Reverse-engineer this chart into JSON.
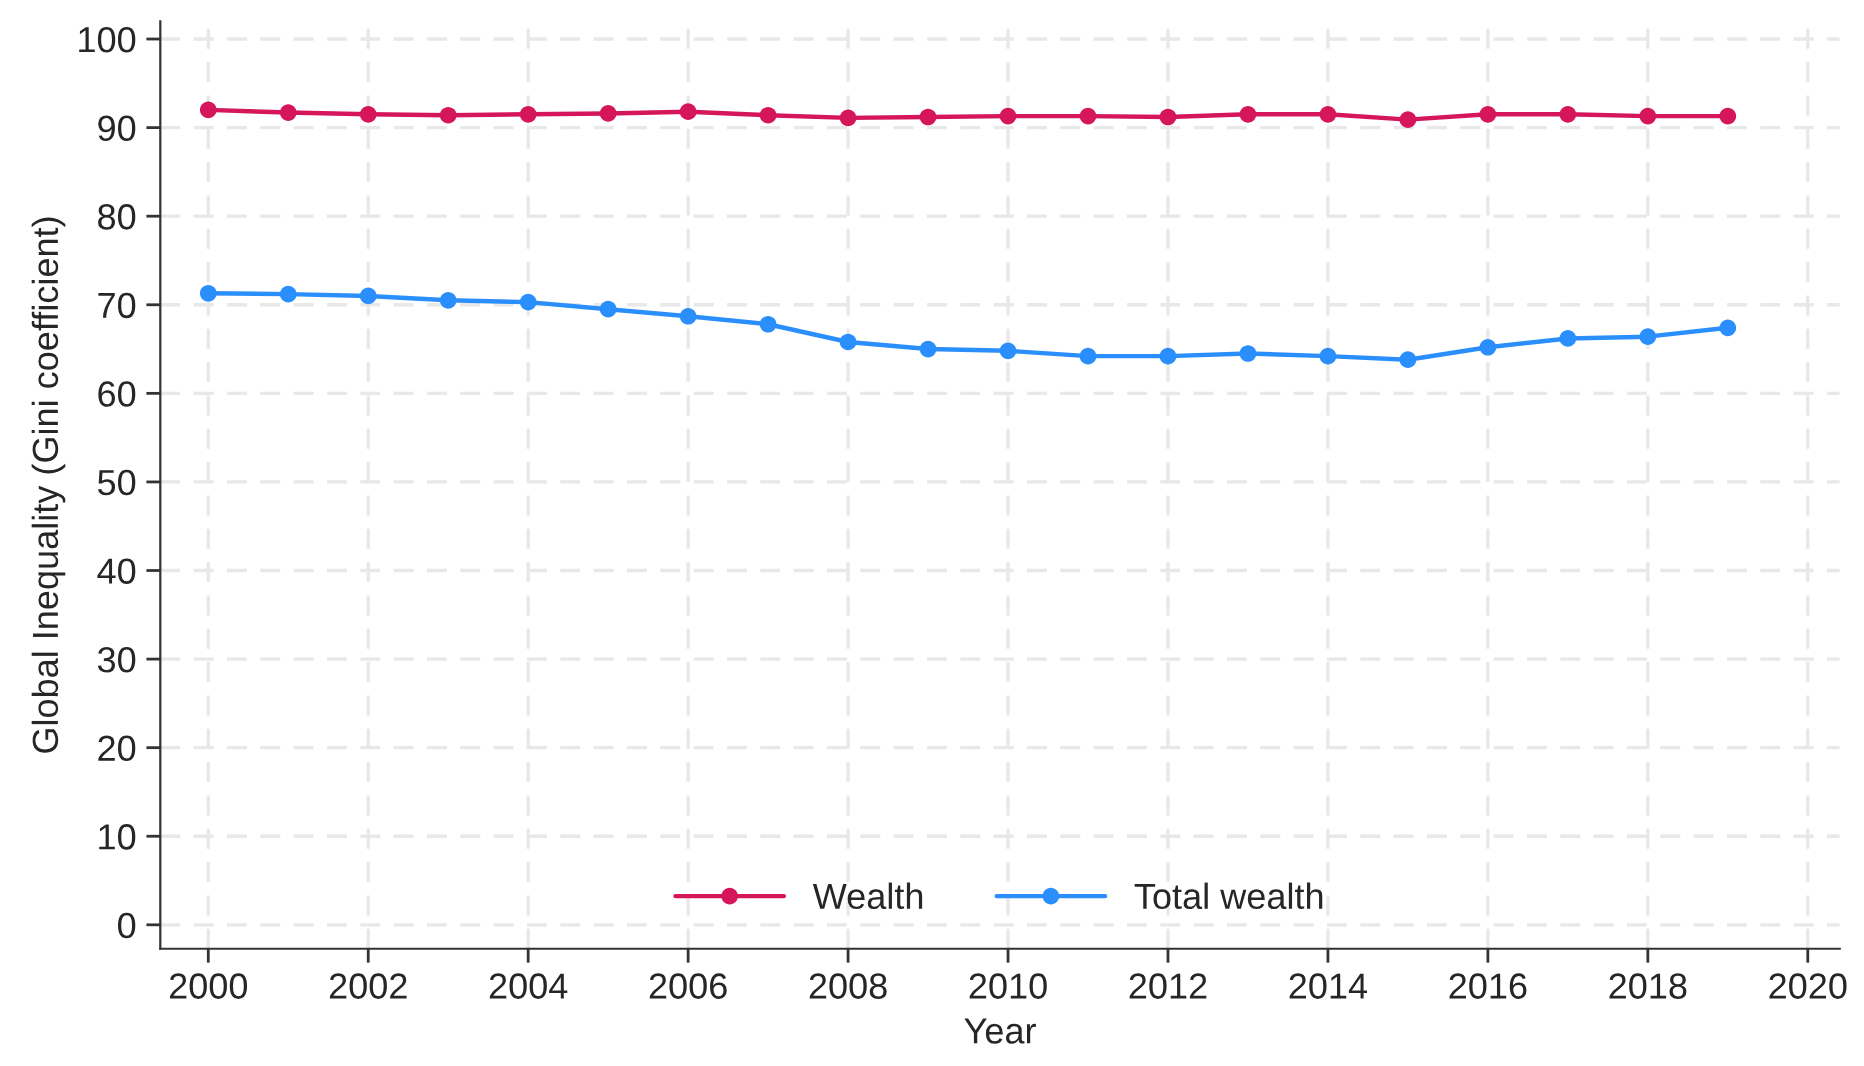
{
  "chart_data": {
    "type": "line",
    "xlabel": "Year",
    "ylabel": "Global Inequality (Gini coefficient)",
    "x": [
      2000,
      2001,
      2002,
      2003,
      2004,
      2005,
      2006,
      2007,
      2008,
      2009,
      2010,
      2011,
      2012,
      2013,
      2014,
      2015,
      2016,
      2017,
      2018,
      2019
    ],
    "series": [
      {
        "name": "Wealth",
        "color": "#d6165a",
        "values": [
          92.0,
          91.7,
          91.5,
          91.4,
          91.5,
          91.6,
          91.8,
          91.4,
          91.1,
          91.2,
          91.3,
          91.3,
          91.2,
          91.5,
          91.5,
          90.9,
          91.5,
          91.5,
          91.3,
          91.3
        ]
      },
      {
        "name": "Total wealth",
        "color": "#2a8ffc",
        "values": [
          71.3,
          71.2,
          71.0,
          70.5,
          70.3,
          69.5,
          68.7,
          67.8,
          65.8,
          65.0,
          64.8,
          64.2,
          64.2,
          64.5,
          64.2,
          63.8,
          65.2,
          66.2,
          66.4,
          67.4
        ]
      }
    ],
    "xlim": [
      1999.4,
      2020.4
    ],
    "xticks": [
      2000,
      2002,
      2004,
      2006,
      2008,
      2010,
      2012,
      2014,
      2016,
      2018,
      2020
    ],
    "ylim": [
      -2.7,
      102
    ],
    "yticks": [
      0,
      10,
      20,
      30,
      40,
      50,
      60,
      70,
      80,
      90,
      100
    ],
    "grid": true,
    "legend": "bottom",
    "marker": "circle",
    "line_style": "solid"
  }
}
